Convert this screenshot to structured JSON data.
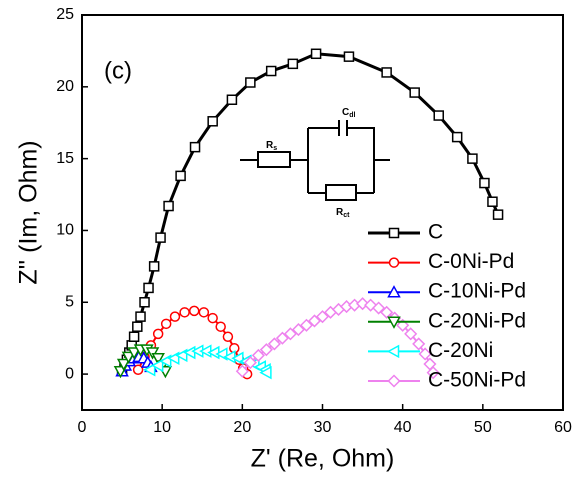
{
  "chart_data": {
    "type": "line",
    "annotation": "(c)",
    "x_label": "Z' (Re, Ohm)",
    "y_label": "Z'' (Im, Ohm)",
    "xlim": [
      0,
      60
    ],
    "xticks": [
      0,
      10,
      20,
      30,
      40,
      50,
      60
    ],
    "ylim": [
      -2.5,
      25
    ],
    "yticks": [
      0,
      5,
      10,
      15,
      20,
      25
    ],
    "legend": "right",
    "inset_labels": [
      {
        "symbol": "R",
        "subscript": "s"
      },
      {
        "symbol": "C",
        "subscript": "dl"
      },
      {
        "symbol": "R",
        "subscript": "ct"
      }
    ],
    "series": [
      {
        "name": "C",
        "color": "#000000",
        "marker": "square",
        "x": [
          5,
          5.3,
          5.6,
          5.9,
          6.2,
          6.5,
          6.9,
          7.3,
          7.8,
          8.3,
          9,
          9.8,
          10.8,
          12.3,
          14.1,
          16.3,
          18.7,
          21,
          23.6,
          26.3,
          29.2,
          33.3,
          38,
          41.5,
          44.5,
          46.8,
          48.7,
          50.2,
          51.2,
          51.9
        ],
        "values": [
          0.2,
          0.6,
          1,
          1.5,
          2,
          2.6,
          3.3,
          4,
          5,
          6,
          7.5,
          9.5,
          11.7,
          13.8,
          15.8,
          17.6,
          19.1,
          20.3,
          21.1,
          21.6,
          22.3,
          22.1,
          21,
          19.6,
          18,
          16.5,
          15,
          13.3,
          12,
          11.1
        ]
      },
      {
        "name": "C-0Ni-Pd",
        "color": "#ff0000",
        "marker": "circle",
        "x": [
          7,
          7.8,
          8.6,
          9.5,
          10.5,
          11.6,
          12.8,
          14,
          15.2,
          16.3,
          17.3,
          18.2,
          19,
          19.6,
          20.1,
          20.6
        ],
        "values": [
          0.3,
          1.2,
          2,
          2.8,
          3.5,
          4,
          4.3,
          4.4,
          4.3,
          3.9,
          3.3,
          2.6,
          1.8,
          1,
          0.4,
          0
        ]
      },
      {
        "name": "C-10Ni-Pd",
        "color": "#0000ff",
        "marker": "triangle-up",
        "x": [
          5,
          5.4,
          5.9,
          6.5,
          7.1,
          7.7,
          8.2,
          8.6
        ],
        "values": [
          0.2,
          0.6,
          0.9,
          1.1,
          1.2,
          1.1,
          0.8,
          0.5
        ]
      },
      {
        "name": "C-20Ni-Pd",
        "color": "#008000",
        "marker": "triangle-down",
        "x": [
          4.8,
          5.2,
          5.8,
          6.5,
          7.3,
          8.1,
          8.8,
          9.5,
          10,
          10.4
        ],
        "values": [
          0.2,
          0.7,
          1.2,
          1.5,
          1.7,
          1.7,
          1.5,
          1.1,
          0.6,
          0.2
        ]
      },
      {
        "name": "C-20Ni",
        "color": "#00ffff",
        "marker": "triangle-left",
        "x": [
          8.5,
          9.5,
          10.5,
          11.5,
          12.5,
          13.5,
          14.5,
          15.5,
          16.5,
          17.5,
          18.5,
          19.5,
          20.5,
          21.5,
          22.3,
          22.9,
          23
        ],
        "values": [
          0.3,
          0.6,
          0.9,
          1.1,
          1.3,
          1.5,
          1.6,
          1.6,
          1.5,
          1.4,
          1.2,
          1.1,
          0.9,
          0.7,
          0.5,
          0.3,
          0.1
        ]
      },
      {
        "name": "C-50Ni-Pd",
        "color": "#ee82ee",
        "marker": "diamond",
        "x": [
          20,
          21,
          22,
          23,
          24,
          25,
          26,
          27,
          28,
          29,
          30,
          31,
          32,
          33,
          34,
          35,
          36,
          37,
          38,
          39,
          40,
          41,
          42,
          42.8,
          43.4,
          43.8
        ],
        "values": [
          0.2,
          0.8,
          1.3,
          1.7,
          2.1,
          2.5,
          2.8,
          3.1,
          3.4,
          3.7,
          4,
          4.3,
          4.5,
          4.7,
          4.8,
          4.9,
          4.8,
          4.6,
          4.3,
          3.9,
          3.4,
          2.8,
          2.1,
          1.4,
          0.7,
          0.1
        ]
      }
    ]
  }
}
